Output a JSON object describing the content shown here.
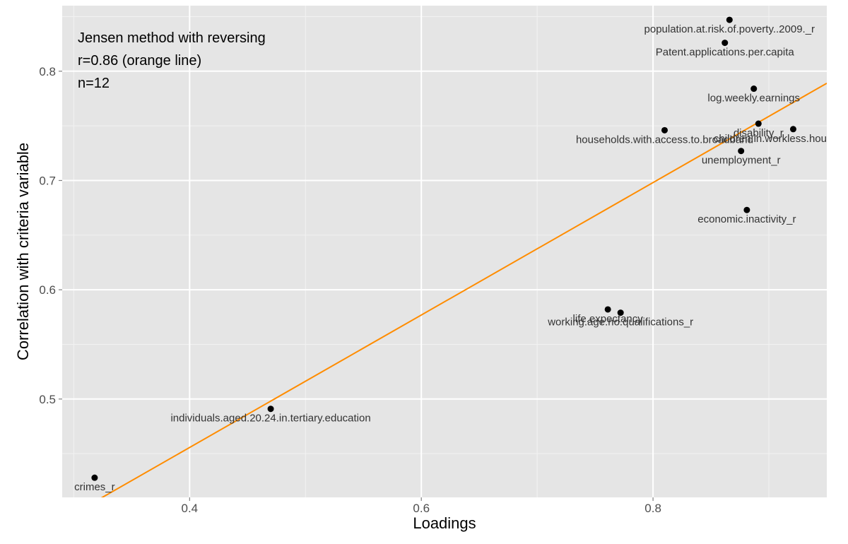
{
  "chart_data": {
    "type": "scatter",
    "title": "",
    "xlabel": "Loadings",
    "ylabel": "Correlation with criteria variable",
    "xlim": [
      0.29,
      0.95
    ],
    "ylim": [
      0.41,
      0.86
    ],
    "x_ticks": [
      0.4,
      0.6,
      0.8
    ],
    "x_tick_labels": [
      "0.4",
      "0.6",
      "0.8"
    ],
    "y_ticks": [
      0.5,
      0.6,
      0.7,
      0.8
    ],
    "y_tick_labels": [
      "0.5",
      "0.6",
      "0.7",
      "0.8"
    ],
    "grid": true,
    "annotations": [
      "Jensen method with reversing",
      "r=0.86 (orange line)",
      "n=12"
    ],
    "fit_line": {
      "color": "#ff8c00",
      "x": [
        0.29,
        0.95
      ],
      "y": [
        0.389,
        0.789
      ]
    },
    "points": [
      {
        "label": "population.at.risk.of.poverty..2009._r",
        "x": 0.866,
        "y": 0.847
      },
      {
        "label": "Patent.applications.per.capita",
        "x": 0.862,
        "y": 0.826
      },
      {
        "label": "log.weekly.earnings",
        "x": 0.887,
        "y": 0.784
      },
      {
        "label": "disability_r",
        "x": 0.891,
        "y": 0.752
      },
      {
        "label": "children.in.workless.households_r",
        "x": 0.921,
        "y": 0.747
      },
      {
        "label": "households.with.access.to.broadband",
        "x": 0.81,
        "y": 0.746
      },
      {
        "label": "unemployment_r",
        "x": 0.876,
        "y": 0.727
      },
      {
        "label": "economic.inactivity_r",
        "x": 0.881,
        "y": 0.673
      },
      {
        "label": "life.expectancy",
        "x": 0.761,
        "y": 0.582
      },
      {
        "label": "working.age.no.qualifications_r",
        "x": 0.772,
        "y": 0.579
      },
      {
        "label": "individuals.aged.20.24.in.tertiary.education",
        "x": 0.47,
        "y": 0.491
      },
      {
        "label": "crimes_r",
        "x": 0.318,
        "y": 0.428
      }
    ]
  }
}
